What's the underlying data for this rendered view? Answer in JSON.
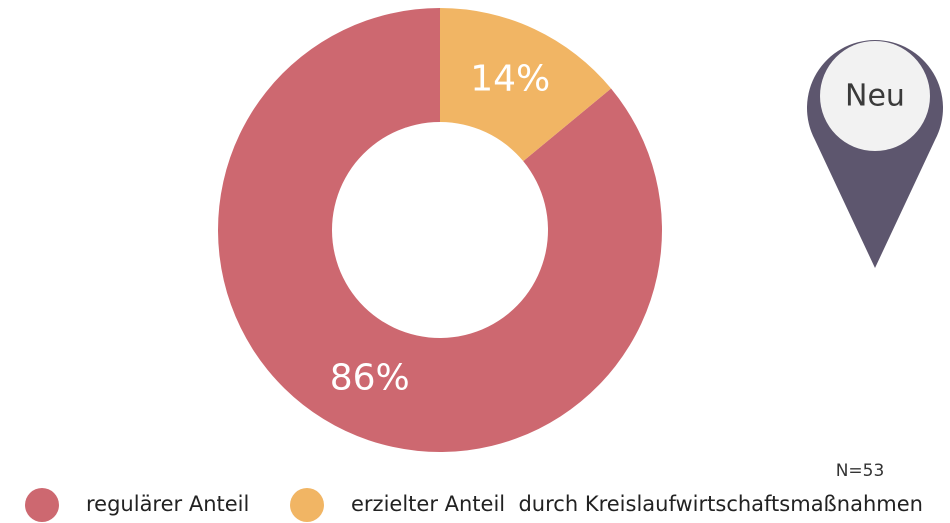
{
  "chart_data": {
    "type": "pie",
    "categories": [
      "regulärer Anteil",
      "erzielter Anteil  durch Kreislaufwirtschaftsmaßnahmen"
    ],
    "values": [
      86,
      14
    ],
    "value_labels": [
      "86%",
      "14%"
    ],
    "colors": [
      "#cd6870",
      "#f1b564"
    ],
    "annotation": "N=53",
    "badge": "Neu"
  }
}
